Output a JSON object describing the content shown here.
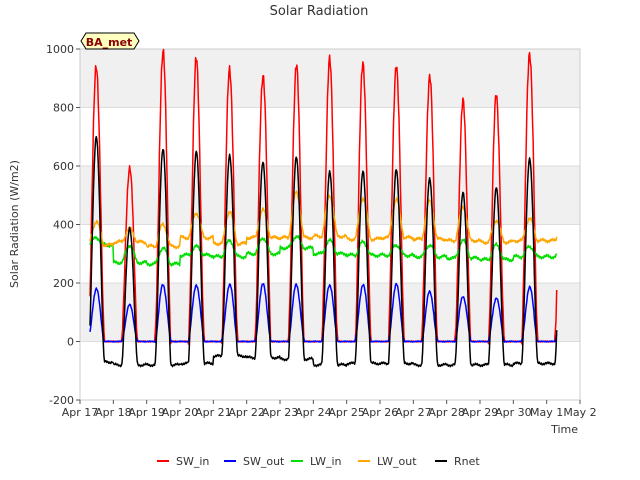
{
  "chart_data": {
    "type": "line",
    "title": "Solar Radiation",
    "xlabel": "Time",
    "ylabel": "Solar Radiation (W/m2)",
    "badge": "BA_met",
    "xlim": [
      0,
      15
    ],
    "ylim": [
      -200,
      1000
    ],
    "yticks": [
      -200,
      0,
      200,
      400,
      600,
      800,
      1000
    ],
    "xticks": [
      "Apr 17",
      "Apr 18",
      "Apr 19",
      "Apr 20",
      "Apr 21",
      "Apr 22",
      "Apr 23",
      "Apr 24",
      "Apr 25",
      "Apr 26",
      "Apr 27",
      "Apr 28",
      "Apr 29",
      "Apr 30",
      "May 1",
      "May 2"
    ],
    "grid": true,
    "legend_position": "bottom",
    "days": [
      "Apr 17",
      "Apr 18",
      "Apr 19",
      "Apr 20",
      "Apr 21",
      "Apr 22",
      "Apr 23",
      "Apr 24",
      "Apr 25",
      "Apr 26",
      "Apr 27",
      "Apr 28",
      "Apr 29",
      "Apr 30",
      "May 1"
    ],
    "series": [
      {
        "name": "SW_in",
        "color": "#ff0000",
        "daily_peak": [
          950,
          600,
          985,
          960,
          935,
          920,
          945,
          955,
          950,
          955,
          910,
          815,
          840,
          995
        ]
      },
      {
        "name": "SW_out",
        "color": "#0000ff",
        "daily_peak": [
          180,
          125,
          195,
          195,
          195,
          195,
          195,
          195,
          195,
          195,
          170,
          155,
          150,
          185
        ]
      },
      {
        "name": "LW_in",
        "color": "#00dd00",
        "daily_night": [
          330,
          270,
          265,
          295,
          290,
          300,
          320,
          300,
          295,
          295,
          290,
          285,
          280,
          290
        ],
        "daily_peak": [
          355,
          330,
          320,
          325,
          345,
          355,
          360,
          345,
          340,
          330,
          330,
          345,
          330,
          325
        ]
      },
      {
        "name": "LW_out",
        "color": "#ffa500",
        "daily_night": [
          330,
          340,
          325,
          355,
          335,
          355,
          355,
          360,
          350,
          355,
          350,
          345,
          340,
          345
        ],
        "daily_peak": [
          410,
          385,
          400,
          440,
          445,
          450,
          510,
          500,
          490,
          485,
          480,
          460,
          415,
          420
        ]
      },
      {
        "name": "Rnet",
        "color": "#000000",
        "daily_night": [
          -70,
          -80,
          -80,
          -75,
          -50,
          -55,
          -60,
          -80,
          -75,
          -75,
          -80,
          -80,
          -80,
          -75
        ],
        "daily_peak": [
          700,
          390,
          660,
          650,
          635,
          615,
          635,
          580,
          580,
          590,
          560,
          510,
          525,
          625
        ]
      }
    ]
  }
}
